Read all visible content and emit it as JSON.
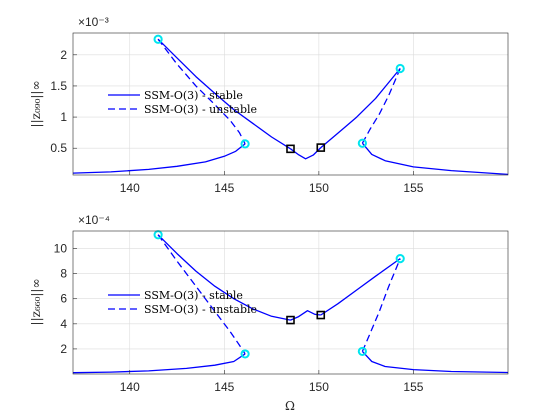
{
  "figure": {
    "xlabel": "Ω"
  },
  "colors": {
    "curve": "#0000ff",
    "fold": "#00e5ee",
    "special": "#000000",
    "grid": "#dcdcdc",
    "axis": "#262626"
  },
  "chart_data": [
    {
      "type": "line",
      "ylabel": "||z₀₉₀||∞",
      "ylabel_sub": "990",
      "y_exponent": "×10⁻³",
      "xlim": [
        137,
        160
      ],
      "ylim": [
        0.07,
        2.35
      ],
      "xticks": [
        140,
        145,
        150,
        155
      ],
      "yticks": [
        0.5,
        1,
        1.5,
        2
      ],
      "ytick_labels": [
        "0.5",
        "1",
        "1.5",
        "2"
      ],
      "grid": true,
      "legend": {
        "position": "left",
        "entries": [
          "SSM-O(3) - stable",
          "SSM-O(3) - unstable"
        ]
      },
      "series": [
        {
          "name": "SSM-O(3) - stable",
          "style": "solid",
          "segments": [
            [
              [
                137,
                0.1
              ],
              [
                139,
                0.12
              ],
              [
                141,
                0.16
              ],
              [
                142.5,
                0.21
              ],
              [
                144,
                0.28
              ],
              [
                145,
                0.37
              ],
              [
                145.6,
                0.45
              ],
              [
                146.1,
                0.57
              ]
            ],
            [
              [
                141.5,
                2.25
              ],
              [
                142.5,
                1.95
              ],
              [
                143.5,
                1.65
              ],
              [
                144.5,
                1.38
              ],
              [
                145.5,
                1.12
              ],
              [
                146.5,
                0.9
              ],
              [
                147.5,
                0.68
              ],
              [
                148.5,
                0.49
              ]
            ],
            [
              [
                148.5,
                0.49
              ],
              [
                148.9,
                0.4
              ],
              [
                149.3,
                0.33
              ],
              [
                149.7,
                0.39
              ],
              [
                150.1,
                0.51
              ]
            ],
            [
              [
                150.1,
                0.51
              ],
              [
                151,
                0.74
              ],
              [
                152,
                1.0
              ],
              [
                153,
                1.3
              ],
              [
                154.3,
                1.78
              ]
            ],
            [
              [
                152.3,
                0.58
              ],
              [
                152.8,
                0.4
              ],
              [
                153.5,
                0.3
              ],
              [
                155,
                0.2
              ],
              [
                157,
                0.14
              ],
              [
                160,
                0.08
              ]
            ]
          ]
        },
        {
          "name": "SSM-O(3) - unstable",
          "style": "dashed",
          "segments": [
            [
              [
                141.5,
                2.25
              ],
              [
                142.5,
                1.85
              ],
              [
                143.5,
                1.5
              ],
              [
                144.5,
                1.2
              ],
              [
                145.3,
                0.95
              ],
              [
                145.8,
                0.75
              ],
              [
                146.1,
                0.57
              ]
            ],
            [
              [
                152.3,
                0.58
              ],
              [
                152.7,
                0.8
              ],
              [
                153.2,
                1.05
              ],
              [
                153.7,
                1.35
              ],
              [
                154.3,
                1.78
              ]
            ]
          ]
        }
      ],
      "fold_points": [
        [
          141.5,
          2.25
        ],
        [
          146.1,
          0.57
        ],
        [
          152.3,
          0.58
        ],
        [
          154.3,
          1.78
        ]
      ],
      "special_points": [
        [
          148.5,
          0.49
        ],
        [
          150.1,
          0.51
        ]
      ]
    },
    {
      "type": "line",
      "ylabel": "||z₆₆₀||∞",
      "ylabel_sub": "660",
      "y_exponent": "×10⁻⁴",
      "xlim": [
        137,
        160
      ],
      "ylim": [
        0,
        11.4
      ],
      "xticks": [
        140,
        145,
        150,
        155
      ],
      "yticks": [
        2,
        4,
        6,
        8,
        10
      ],
      "ytick_labels": [
        "2",
        "4",
        "6",
        "8",
        "10"
      ],
      "grid": true,
      "legend": {
        "position": "left",
        "entries": [
          "SSM-O(3) - stable",
          "SSM-O(3) - unstable"
        ]
      },
      "series": [
        {
          "name": "SSM-O(3) - stable",
          "style": "solid",
          "segments": [
            [
              [
                137,
                0.1
              ],
              [
                139,
                0.15
              ],
              [
                141,
                0.25
              ],
              [
                143,
                0.45
              ],
              [
                144.5,
                0.7
              ],
              [
                145.5,
                1.0
              ],
              [
                146.1,
                1.6
              ]
            ],
            [
              [
                141.5,
                11.1
              ],
              [
                142.5,
                9.6
              ],
              [
                143.5,
                8.2
              ],
              [
                144.5,
                7.0
              ],
              [
                145.5,
                6.0
              ],
              [
                146.5,
                5.2
              ],
              [
                147.5,
                4.6
              ],
              [
                148.5,
                4.3
              ]
            ],
            [
              [
                148.5,
                4.3
              ],
              [
                148.9,
                4.55
              ],
              [
                149.4,
                5.05
              ],
              [
                149.8,
                4.75
              ],
              [
                150.1,
                4.7
              ]
            ],
            [
              [
                150.1,
                4.7
              ],
              [
                151,
                5.6
              ],
              [
                152,
                6.7
              ],
              [
                153,
                7.8
              ],
              [
                154.3,
                9.2
              ]
            ],
            [
              [
                152.3,
                1.8
              ],
              [
                152.8,
                1.0
              ],
              [
                153.5,
                0.6
              ],
              [
                155,
                0.35
              ],
              [
                157,
                0.2
              ],
              [
                160,
                0.12
              ]
            ]
          ]
        },
        {
          "name": "SSM-O(3) - unstable",
          "style": "dashed",
          "segments": [
            [
              [
                141.5,
                11.1
              ],
              [
                142.5,
                9.0
              ],
              [
                143.5,
                7.0
              ],
              [
                144.5,
                5.0
              ],
              [
                145.3,
                3.4
              ],
              [
                145.8,
                2.3
              ],
              [
                146.1,
                1.6
              ]
            ],
            [
              [
                152.3,
                1.8
              ],
              [
                152.7,
                3.2
              ],
              [
                153.2,
                5.0
              ],
              [
                153.7,
                7.0
              ],
              [
                154.3,
                9.2
              ]
            ]
          ]
        }
      ],
      "fold_points": [
        [
          141.5,
          11.1
        ],
        [
          146.1,
          1.6
        ],
        [
          152.3,
          1.8
        ],
        [
          154.3,
          9.2
        ]
      ],
      "special_points": [
        [
          148.5,
          4.3
        ],
        [
          150.1,
          4.7
        ]
      ]
    }
  ]
}
